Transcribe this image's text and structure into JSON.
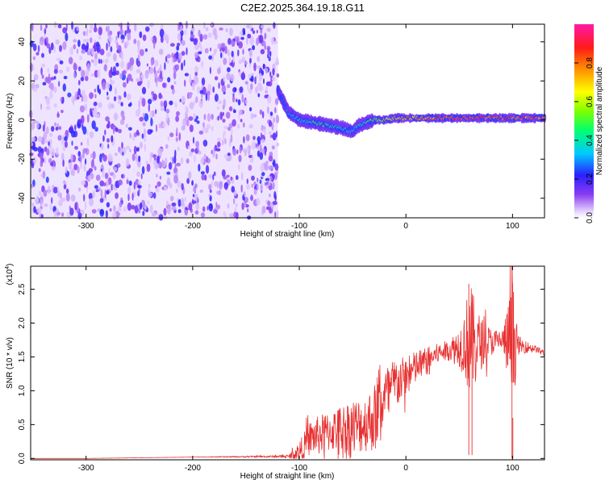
{
  "title": "C2E2.2025.364.19.18.G11",
  "chart_data": [
    {
      "type": "heatmap",
      "name": "spectrogram",
      "xlabel": "Height of straight line (km)",
      "ylabel": "Frequency (Hz)",
      "xlim": [
        -352,
        130
      ],
      "ylim": [
        -50,
        49
      ],
      "xticks": [
        -300,
        -200,
        -100,
        0,
        100
      ],
      "xtick_labels": [
        "-300",
        "-200",
        "-100",
        "0",
        "100"
      ],
      "yticks": [
        -40,
        -20,
        0,
        20,
        40
      ],
      "ytick_labels": [
        "-40",
        "-20",
        "0",
        "20",
        "40"
      ],
      "noise_region": {
        "x_from": -352,
        "x_to": -120,
        "description_level": 0.15
      },
      "ridge": {
        "x": [
          -120,
          -110,
          -100,
          -90,
          -80,
          -70,
          -60,
          -50,
          -45,
          -40,
          -30,
          -20,
          -10,
          0,
          20,
          40,
          60,
          80,
          100,
          130
        ],
        "frequency": [
          15,
          4,
          0,
          -1,
          -2,
          -3,
          -4,
          -6,
          -3,
          -2,
          0,
          0,
          1,
          1,
          1,
          1,
          1,
          1,
          1,
          1
        ],
        "amplitude": [
          0.2,
          0.35,
          0.4,
          0.45,
          0.5,
          0.45,
          0.4,
          0.35,
          0.4,
          0.45,
          0.55,
          0.6,
          0.7,
          0.75,
          0.8,
          0.85,
          0.9,
          0.9,
          0.85,
          0.85
        ]
      },
      "colorbar": {
        "label": "Normalized spectral amplitude",
        "range": [
          0,
          1
        ],
        "ticks": [
          0.0,
          0.2,
          0.4,
          0.6,
          0.8
        ],
        "tick_labels": [
          "0.0",
          "0.2",
          "0.4",
          "0.6",
          "0.8"
        ]
      }
    },
    {
      "type": "line",
      "name": "snr",
      "xlabel": "Height of straight line (km)",
      "ylabel": "SNR (10 * v/v)",
      "scale_label_base": "(x10",
      "scale_label_exp": "4",
      "scale_label_close": ")",
      "color": "#e83030",
      "xlim": [
        -352,
        130
      ],
      "ylim": [
        -0.02,
        2.84
      ],
      "xticks": [
        -300,
        -200,
        -100,
        0,
        100
      ],
      "xtick_labels": [
        "-300",
        "-200",
        "-100",
        "0",
        "100"
      ],
      "yticks": [
        0.0,
        0.5,
        1.0,
        1.5,
        2.0,
        2.5
      ],
      "ytick_labels": [
        "0.0",
        "0.5",
        "1.0",
        "1.5",
        "2.0",
        "2.5"
      ],
      "x": [
        -352,
        -300,
        -200,
        -110,
        -100,
        -90,
        -80,
        -70,
        -60,
        -50,
        -40,
        -30,
        -20,
        -10,
        0,
        10,
        20,
        30,
        40,
        50,
        55,
        60,
        65,
        70,
        75,
        80,
        90,
        95,
        100,
        105,
        110,
        120,
        130
      ],
      "y": [
        0.0,
        0.0,
        0.02,
        0.03,
        0.1,
        0.3,
        0.35,
        0.4,
        0.45,
        0.45,
        0.5,
        0.6,
        0.9,
        1.1,
        1.2,
        1.35,
        1.45,
        1.55,
        1.6,
        1.65,
        1.7,
        1.75,
        1.7,
        1.7,
        1.72,
        1.72,
        1.75,
        1.72,
        1.7,
        1.68,
        1.65,
        1.63,
        1.55
      ],
      "noise_amplitude": [
        0.0,
        0.0,
        0.0,
        0.02,
        0.15,
        0.25,
        0.3,
        0.3,
        0.35,
        0.45,
        0.4,
        0.5,
        0.45,
        0.4,
        0.3,
        0.25,
        0.2,
        0.15,
        0.15,
        0.3,
        0.5,
        0.9,
        0.6,
        0.4,
        0.3,
        0.2,
        0.15,
        0.5,
        1.0,
        0.15,
        0.1,
        0.05,
        0.05
      ]
    }
  ]
}
